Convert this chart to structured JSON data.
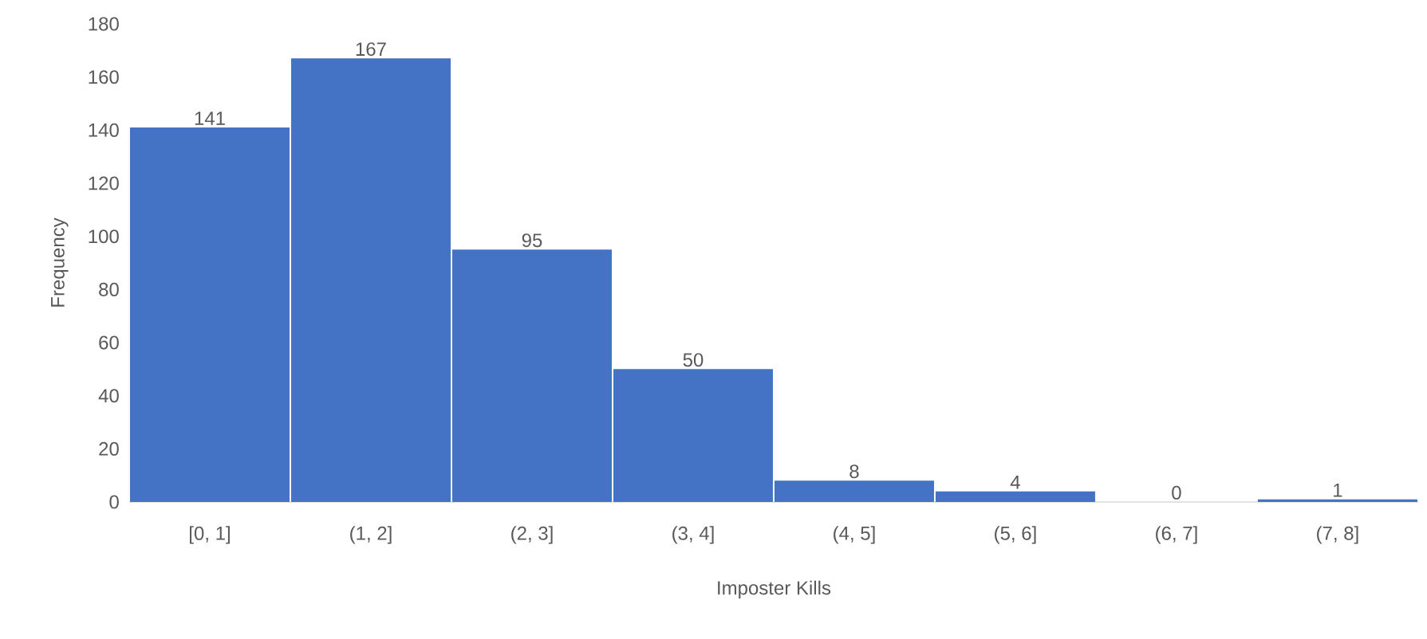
{
  "chart_data": {
    "type": "bar",
    "xlabel": "Imposter Kills",
    "ylabel": "Frequency",
    "categories": [
      "[0, 1]",
      "(1, 2]",
      "(2, 3]",
      "(3, 4]",
      "(4, 5]",
      "(5, 6]",
      "(6, 7]",
      "(7, 8]"
    ],
    "values": [
      141,
      167,
      95,
      50,
      8,
      4,
      0,
      1
    ],
    "color": "#4472c4",
    "data_labels": true,
    "ylim": [
      0,
      180
    ],
    "yticks": [
      0,
      20,
      40,
      60,
      80,
      100,
      120,
      140,
      160,
      180
    ]
  }
}
